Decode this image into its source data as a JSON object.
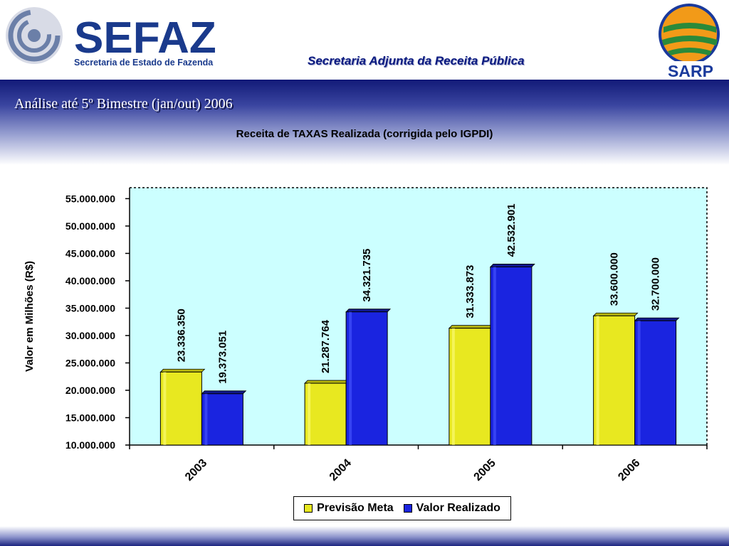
{
  "header": {
    "logo_left_text": "SEFAZ",
    "logo_left_subtitle": "Secretaria de Estado de Fazenda",
    "logo_right_text": "SARP",
    "subtitle": "Secretaria Adjunta da Receita Pública"
  },
  "band": {
    "title": "Análise até 5º Bimestre (jan/out) 2006"
  },
  "colors": {
    "band_dark": "#121a78",
    "plot_background": "#ccffff",
    "series_meta": "#e8e820",
    "series_realizado": "#1a24e0"
  },
  "chart_data": {
    "type": "bar",
    "title": "Receita de TAXAS Realizada (corrigida pelo IGPDI)",
    "xlabel": "",
    "ylabel": "Valor em Milhões (R$)",
    "categories": [
      "2003",
      "2004",
      "2005",
      "2006"
    ],
    "series": [
      {
        "name": "Previsão Meta",
        "color": "#e8e820",
        "values": [
          23336350,
          21287764,
          31333873,
          33600000
        ],
        "labels": [
          "23.336.350",
          "21.287.764",
          "31.333.873",
          "33.600.000"
        ]
      },
      {
        "name": "Valor Realizado",
        "color": "#1a24e0",
        "values": [
          19373051,
          34321735,
          42532901,
          32700000
        ],
        "labels": [
          "19.373.051",
          "34.321.735",
          "42.532.901",
          "32.700.000"
        ]
      }
    ],
    "ylim": [
      10000000,
      57000000
    ],
    "yticks": [
      10000000,
      15000000,
      20000000,
      25000000,
      30000000,
      35000000,
      40000000,
      45000000,
      50000000,
      55000000
    ],
    "ytick_labels": [
      "10.000.000",
      "15.000.000",
      "20.000.000",
      "25.000.000",
      "30.000.000",
      "35.000.000",
      "40.000.000",
      "45.000.000",
      "50.000.000",
      "55.000.000"
    ],
    "grid": false,
    "legend_position": "bottom"
  }
}
